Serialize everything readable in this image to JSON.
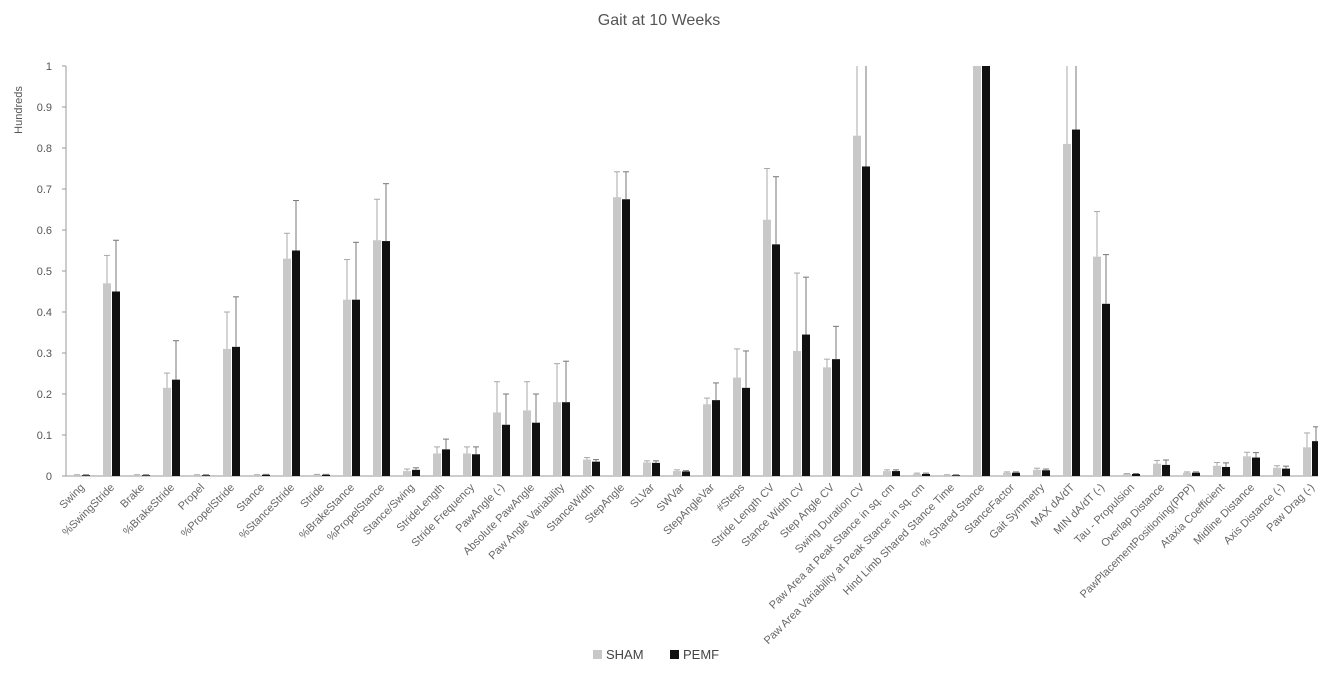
{
  "chart_data": {
    "type": "bar",
    "title": "Gait at 10 Weeks",
    "ylabel": "Hundreds",
    "xlabel": "",
    "ylim": [
      0,
      1
    ],
    "yticks": [
      "0",
      "0.1",
      "0.2",
      "0.3",
      "0.4",
      "0.5",
      "0.6",
      "0.7",
      "0.8",
      "0.9",
      "1"
    ],
    "legend_position": "bottom",
    "grid": false,
    "categories": [
      "Swing",
      "%SwingStride",
      "Brake",
      "%BrakeStride",
      "Propel",
      "%PropelStride",
      "Stance",
      "%StanceStride",
      "Stride",
      "%BrakeStance",
      "%PropelStance",
      "Stance/Swing",
      "StrideLength",
      "Stride Frequency",
      "PawAngle (-)",
      "Absolute PawAngle",
      "Paw Angle Variability",
      "StanceWidth",
      "StepAngle",
      "SLVar",
      "SWVar",
      "StepAngleVar",
      "#Steps",
      "Stride Length CV",
      "Stance Width CV",
      "Step Angle CV",
      "Swing Duration CV",
      "Paw Area at Peak Stance in sq. cm",
      "Paw Area Variability at Peak Stance in sq. cm",
      "Hind Limb Shared Stance Time",
      "% Shared Stance",
      "StanceFactor",
      "Gait Symmetry",
      "MAX dA/dT",
      "MIN dA/dT (-)",
      "Tau - Propulsion",
      "Overlap Distance",
      "PawPlacementPositioning(PPP)",
      "Ataxia Coefficient",
      "Midline Distance",
      "Axis Distance (-)",
      "Paw Drag (-)"
    ],
    "series": [
      {
        "name": "SHAM",
        "color": "#c8c8c8",
        "values": [
          0.002,
          0.47,
          0.002,
          0.215,
          0.002,
          0.31,
          0.002,
          0.53,
          0.003,
          0.43,
          0.575,
          0.012,
          0.055,
          0.055,
          0.155,
          0.16,
          0.18,
          0.04,
          0.68,
          0.033,
          0.012,
          0.175,
          0.24,
          0.625,
          0.305,
          0.265,
          0.83,
          0.012,
          0.005,
          0.002,
          1.0,
          0.008,
          0.015,
          0.81,
          0.535,
          0.005,
          0.03,
          0.008,
          0.025,
          0.048,
          0.02,
          0.07
        ],
        "errors": [
          0.001,
          0.068,
          0.001,
          0.036,
          0.001,
          0.09,
          0.001,
          0.062,
          0.001,
          0.098,
          0.1,
          0.005,
          0.016,
          0.016,
          0.075,
          0.07,
          0.094,
          0.005,
          0.062,
          0.004,
          0.003,
          0.015,
          0.07,
          0.125,
          0.19,
          0.02,
          0.35,
          0.003,
          0.002,
          0.001,
          0.05,
          0.002,
          0.004,
          0.3,
          0.11,
          0.001,
          0.008,
          0.002,
          0.008,
          0.01,
          0.005,
          0.035
        ]
      },
      {
        "name": "PEMF",
        "color": "#111111",
        "values": [
          0.002,
          0.45,
          0.002,
          0.235,
          0.002,
          0.315,
          0.003,
          0.55,
          0.003,
          0.43,
          0.573,
          0.015,
          0.065,
          0.053,
          0.125,
          0.13,
          0.18,
          0.035,
          0.675,
          0.032,
          0.011,
          0.185,
          0.215,
          0.565,
          0.345,
          0.285,
          0.755,
          0.012,
          0.005,
          0.002,
          1.0,
          0.008,
          0.014,
          0.845,
          0.42,
          0.005,
          0.027,
          0.008,
          0.022,
          0.045,
          0.018,
          0.085
        ],
        "errors": [
          0.001,
          0.125,
          0.001,
          0.095,
          0.001,
          0.122,
          0.001,
          0.122,
          0.001,
          0.14,
          0.14,
          0.005,
          0.025,
          0.018,
          0.075,
          0.07,
          0.1,
          0.005,
          0.067,
          0.005,
          0.002,
          0.042,
          0.09,
          0.165,
          0.14,
          0.08,
          0.35,
          0.003,
          0.002,
          0.001,
          0.05,
          0.002,
          0.003,
          0.3,
          0.12,
          0.001,
          0.012,
          0.002,
          0.01,
          0.012,
          0.006,
          0.035
        ]
      }
    ]
  }
}
